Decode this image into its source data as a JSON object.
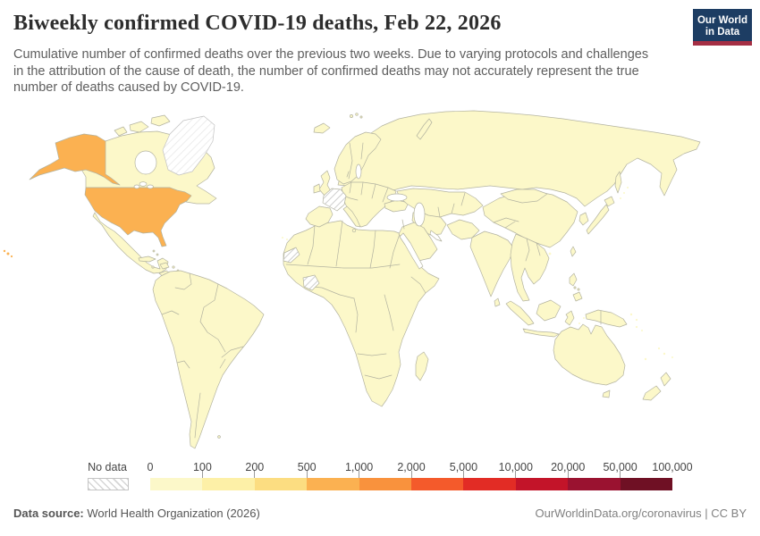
{
  "header": {
    "title": "Biweekly confirmed COVID-19 deaths, Feb 22, 2026",
    "subtitle_lines": [
      "Cumulative number of confirmed deaths over the previous two weeks. Due to varying protocols and challenges",
      "in the attribution of the cause of death, the number of confirmed deaths may not accurately represent the true",
      "number of deaths caused by COVID-19."
    ],
    "logo": {
      "line1": "Our World",
      "line2": "in Data",
      "bg_color": "#1d3d63",
      "stripe_color": "#a52f44"
    }
  },
  "legend": {
    "no_data_label": "No data",
    "tick_labels": [
      "0",
      "100",
      "200",
      "500",
      "1,000",
      "2,000",
      "5,000",
      "10,000",
      "20,000",
      "50,000",
      "100,000"
    ]
  },
  "footer": {
    "source_label": "Data source:",
    "source_value": " World Health Organization (2026)",
    "attribution": "OurWorldinData.org/coronavirus | CC BY"
  },
  "chart_data": {
    "type": "choropleth_map",
    "title": "Biweekly confirmed COVID-19 deaths, Feb 22, 2026",
    "date": "Feb 22, 2026",
    "unit": "confirmed deaths over previous two weeks",
    "projection": "world",
    "legend_position": "bottom",
    "scale": {
      "bin_edges": [
        0,
        100,
        200,
        500,
        1000,
        2000,
        5000,
        10000,
        20000,
        50000,
        100000
      ],
      "colors": [
        "#fcf8c9",
        "#fdf0a7",
        "#fcdd81",
        "#fbb151",
        "#f9923d",
        "#f45a2b",
        "#e22c25",
        "#c31429",
        "#9a1230",
        "#6f1024"
      ],
      "no_data_style": "white with gray diagonal hatching",
      "country_border_color": "#b3b3a0"
    },
    "regions": [
      {
        "name": "United States",
        "bin": "500–1,000",
        "color_index": 3
      },
      {
        "name": "France",
        "value": "No data"
      },
      {
        "name": "Western Sahara",
        "value": "No data"
      },
      {
        "name": "Côte d'Ivoire",
        "value": "No data"
      },
      {
        "name": "Greenland",
        "value": "No data"
      },
      {
        "name": "All other countries shown",
        "bin": "0–100",
        "color_index": 0
      }
    ]
  }
}
